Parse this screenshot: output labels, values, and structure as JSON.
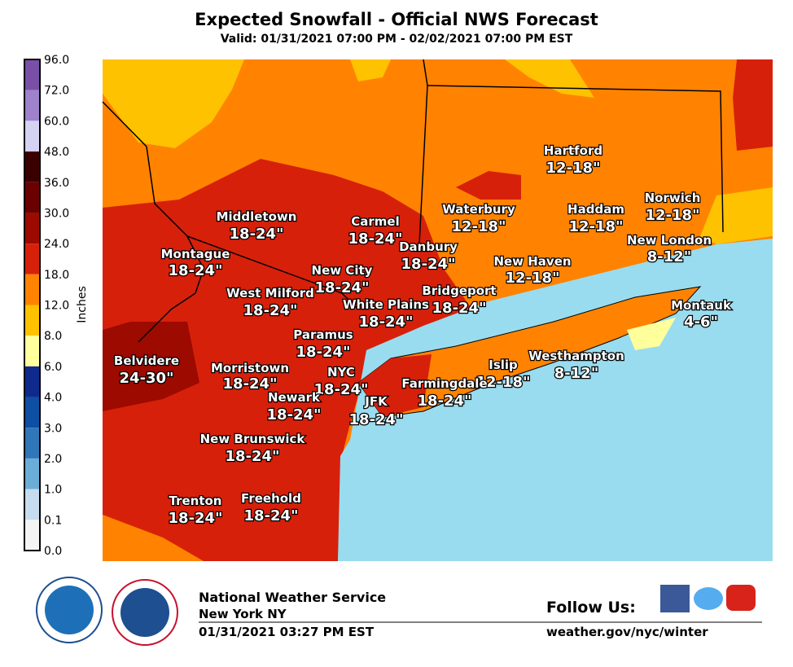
{
  "header": {
    "title": "Expected Snowfall - Official NWS Forecast",
    "subtitle": "Valid: 01/31/2021 07:00 PM - 02/02/2021 07:00 PM EST"
  },
  "legend": {
    "axis_label": "Inches",
    "labels": [
      "96.0",
      "72.0",
      "60.0",
      "48.0",
      "36.0",
      "30.0",
      "24.0",
      "18.0",
      "12.0",
      "8.0",
      "6.0",
      "4.0",
      "3.0",
      "2.0",
      "1.0",
      "0.1",
      "0.0"
    ],
    "colors": [
      "#7a4fa8",
      "#9e82cc",
      "#d6d2f2",
      "#3a0000",
      "#6b0000",
      "#9c0a00",
      "#d7200a",
      "#ff8300",
      "#ffc200",
      "#ffff9c",
      "#0d2a8c",
      "#0d4fa3",
      "#2f77b8",
      "#6aaed8",
      "#c6dbee",
      "#f4f4f4"
    ]
  },
  "cities": [
    {
      "name": "Middletown",
      "amount": "18-24\""
    },
    {
      "name": "Carmel",
      "amount": "18-24\""
    },
    {
      "name": "Waterbury",
      "amount": "12-18\""
    },
    {
      "name": "Hartford",
      "amount": "12-18\""
    },
    {
      "name": "Haddam",
      "amount": "12-18\""
    },
    {
      "name": "Norwich",
      "amount": "12-18\""
    },
    {
      "name": "Danbury",
      "amount": "18-24\""
    },
    {
      "name": "New London",
      "amount": "8-12\""
    },
    {
      "name": "Montague",
      "amount": "18-24\""
    },
    {
      "name": "New City",
      "amount": "18-24\""
    },
    {
      "name": "New Haven",
      "amount": "12-18\""
    },
    {
      "name": "Bridgeport",
      "amount": "18-24\""
    },
    {
      "name": "West Milford",
      "amount": "18-24\""
    },
    {
      "name": "White Plains",
      "amount": "18-24\""
    },
    {
      "name": "Montauk",
      "amount": "4-6\""
    },
    {
      "name": "Paramus",
      "amount": "18-24\""
    },
    {
      "name": "Belvidere",
      "amount": "24-30\""
    },
    {
      "name": "Morristown",
      "amount": "18-24\""
    },
    {
      "name": "NYC",
      "amount": "18-24\""
    },
    {
      "name": "Islip",
      "amount": "12-18\""
    },
    {
      "name": "Westhampton",
      "amount": "8-12\""
    },
    {
      "name": "Farmingdale",
      "amount": "18-24\""
    },
    {
      "name": "Newark",
      "amount": "18-24\""
    },
    {
      "name": "JFK",
      "amount": "18-24\""
    },
    {
      "name": "New Brunswick",
      "amount": "18-24\""
    },
    {
      "name": "Trenton",
      "amount": "18-24\""
    },
    {
      "name": "Freehold",
      "amount": "18-24\""
    }
  ],
  "footer": {
    "agency": "National Weather Service",
    "office": "New York NY",
    "issued": "01/31/2021 03:27 PM EST",
    "follow": "Follow Us:",
    "url": "weather.gov/nyc/winter"
  }
}
